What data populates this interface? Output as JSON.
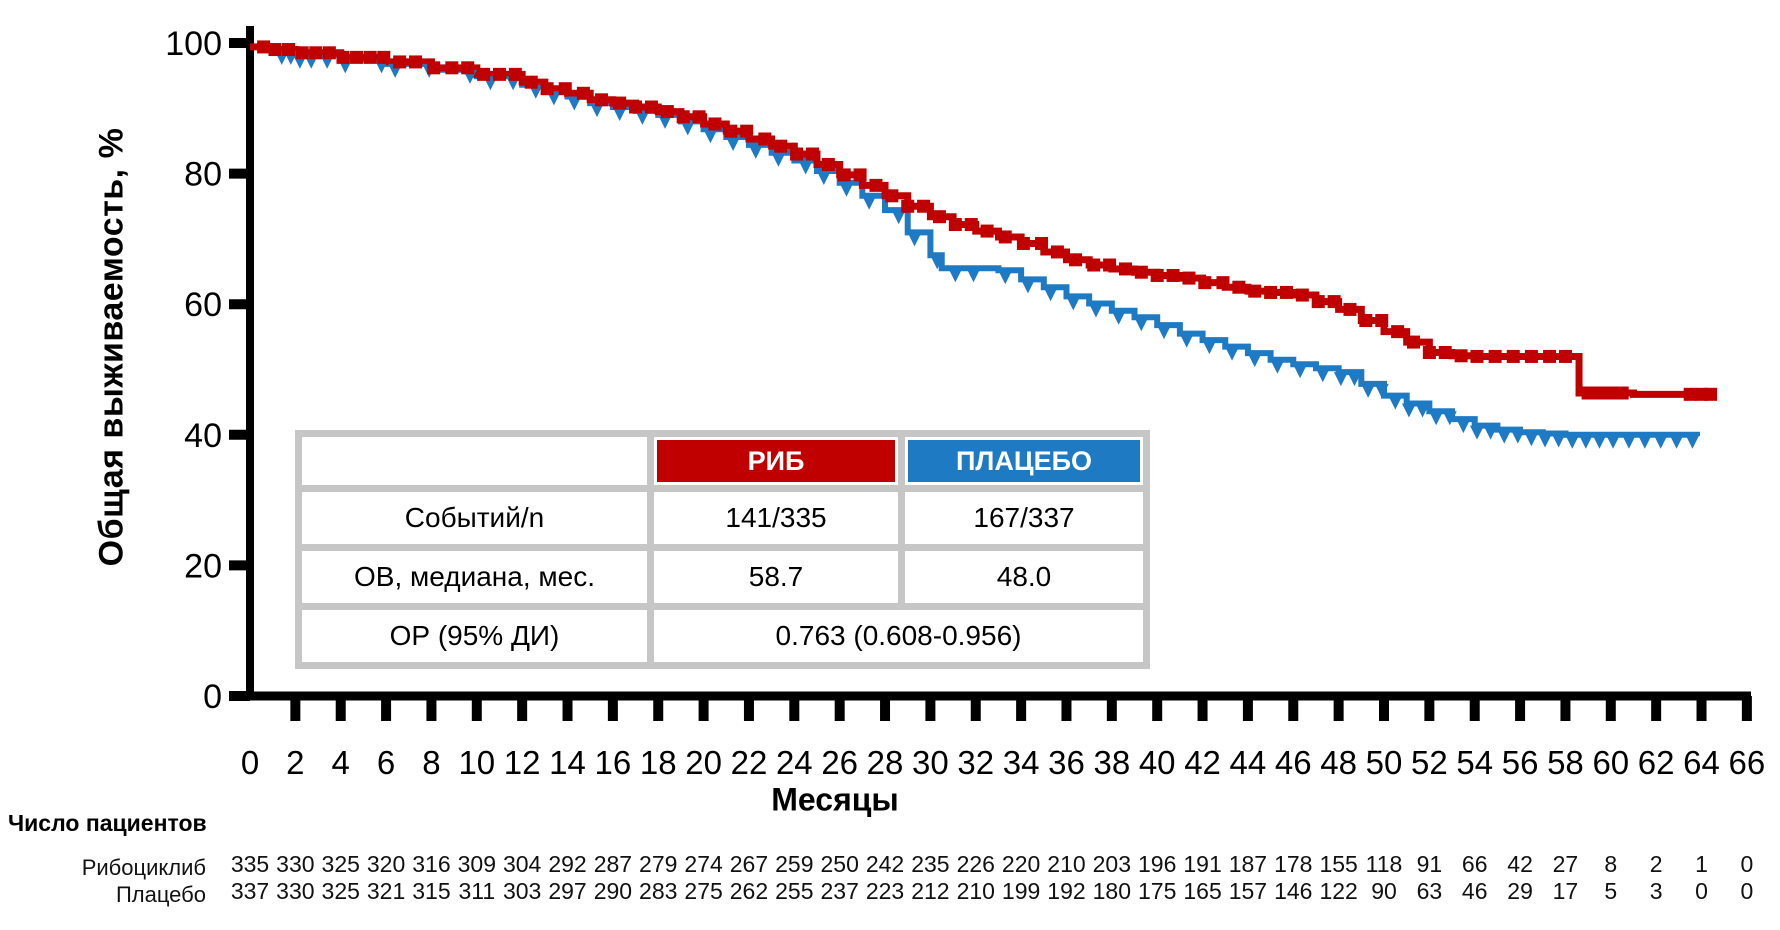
{
  "colors": {
    "rib_red": "#C00000",
    "placebo_blue": "#1F7AC4",
    "table_border_gray": "#C6C6C6",
    "axis_black": "#000000"
  },
  "y_axis": {
    "title": "Общая выживаемость, %",
    "ticks": [
      0,
      20,
      40,
      60,
      80,
      100
    ]
  },
  "x_axis": {
    "title": "Месяцы",
    "tick_start": 0,
    "tick_end": 66,
    "tick_step": 2
  },
  "inset_table": {
    "col_headers": [
      "",
      "РИБ",
      "ПЛАЦЕБО"
    ],
    "rows": [
      {
        "label": "Событий/n",
        "rib": "141/335",
        "placebo": "167/337"
      },
      {
        "label": "ОВ, медиана, мес.",
        "rib": "58.7",
        "placebo": "48.0"
      },
      {
        "label": "ОР (95% ДИ)",
        "combined": "0.763 (0.608-0.956)"
      }
    ]
  },
  "at_risk": {
    "title": "Число пациентов",
    "months": [
      0,
      2,
      4,
      6,
      8,
      10,
      12,
      14,
      16,
      18,
      20,
      22,
      24,
      26,
      28,
      30,
      32,
      34,
      36,
      38,
      40,
      42,
      44,
      46,
      48,
      50,
      52,
      54,
      56,
      58,
      60,
      62,
      64,
      66
    ],
    "rows": [
      {
        "label": "Рибоциклиб",
        "counts": [
          335,
          330,
          325,
          320,
          316,
          309,
          304,
          292,
          287,
          279,
          274,
          267,
          259,
          250,
          242,
          235,
          226,
          220,
          210,
          203,
          196,
          191,
          187,
          178,
          155,
          118,
          91,
          66,
          42,
          27,
          8,
          2,
          1,
          0
        ]
      },
      {
        "label": "Плацебо",
        "counts": [
          337,
          330,
          325,
          321,
          315,
          311,
          303,
          297,
          290,
          283,
          275,
          262,
          255,
          237,
          223,
          212,
          210,
          199,
          192,
          180,
          175,
          165,
          157,
          146,
          122,
          90,
          63,
          46,
          29,
          17,
          5,
          3,
          0,
          0
        ]
      }
    ]
  },
  "chart_data": {
    "type": "line",
    "subtype": "kaplan-meier-step",
    "title": "",
    "xlabel": "Месяцы",
    "ylabel": "Общая выживаемость, %",
    "xlim": [
      0,
      66
    ],
    "ylim": [
      0,
      100
    ],
    "grid": false,
    "legend_position": "inset-table",
    "series": [
      {
        "name": "РИБ",
        "full_name": "Рибоциклиб",
        "color": "#C00000",
        "marker": "square",
        "events_n": "141/335",
        "median_os_months": 58.7,
        "points": [
          [
            0,
            99.4
          ],
          [
            1,
            99.0
          ],
          [
            2,
            98.5
          ],
          [
            4,
            97.8
          ],
          [
            6,
            97.1
          ],
          [
            8,
            96.2
          ],
          [
            10,
            95.2
          ],
          [
            12,
            94.0
          ],
          [
            13,
            93.0
          ],
          [
            14,
            92.3
          ],
          [
            15,
            91.3
          ],
          [
            16,
            90.8
          ],
          [
            17,
            90.2
          ],
          [
            18,
            89.5
          ],
          [
            19,
            88.7
          ],
          [
            20,
            87.6
          ],
          [
            21,
            86.5
          ],
          [
            22,
            85.3
          ],
          [
            23,
            84.2
          ],
          [
            24,
            83.0
          ],
          [
            25,
            81.4
          ],
          [
            26,
            79.8
          ],
          [
            27,
            78.2
          ],
          [
            28,
            76.6
          ],
          [
            29,
            75.0
          ],
          [
            30,
            73.4
          ],
          [
            31,
            72.2
          ],
          [
            32,
            71.2
          ],
          [
            33,
            70.3
          ],
          [
            34,
            69.3
          ],
          [
            35,
            68.0
          ],
          [
            36,
            66.8
          ],
          [
            37,
            66.0
          ],
          [
            38,
            65.4
          ],
          [
            39,
            64.9
          ],
          [
            40,
            64.4
          ],
          [
            41,
            64.0
          ],
          [
            42,
            63.3
          ],
          [
            43,
            62.6
          ],
          [
            44,
            62.0
          ],
          [
            45,
            61.8
          ],
          [
            46,
            61.4
          ],
          [
            47,
            60.4
          ],
          [
            48,
            59.2
          ],
          [
            49,
            57.5
          ],
          [
            50,
            55.8
          ],
          [
            51,
            54.2
          ],
          [
            52,
            52.6
          ],
          [
            53,
            52.1
          ],
          [
            54,
            52.0
          ],
          [
            58.6,
            52.0
          ],
          [
            58.6,
            46.4
          ],
          [
            61,
            46.2
          ],
          [
            64.5,
            46.2
          ]
        ],
        "censor_months": [
          0.6,
          1.1,
          1.7,
          2.3,
          2.9,
          3.5,
          4.1,
          4.7,
          5.3,
          5.9,
          6.6,
          7.3,
          8.1,
          8.9,
          9.6,
          10.3,
          11,
          11.7,
          12.4,
          13.1,
          13.9,
          14.7,
          15.5,
          16.3,
          17,
          17.7,
          18.4,
          19.1,
          19.8,
          20.5,
          21.2,
          21.9,
          22.7,
          23.4,
          24.1,
          24.8,
          25.5,
          26.2,
          26.9,
          27.6,
          28.3,
          29,
          29.7,
          30.4,
          31.1,
          31.8,
          32.5,
          33.3,
          34.1,
          34.9,
          35.6,
          36.4,
          37.2,
          37.9,
          38.6,
          39.3,
          40,
          40.7,
          41.4,
          42.1,
          42.9,
          43.6,
          44.3,
          45,
          45.7,
          46.4,
          47.1,
          47.8,
          48.5,
          49.2,
          49.9,
          50.6,
          51.3,
          52,
          52.7,
          53.4,
          54.1,
          54.9,
          55.7,
          56.5,
          57.3,
          58,
          59,
          59.5,
          60,
          60.5,
          63.5,
          64,
          64.4
        ]
      },
      {
        "name": "ПЛАЦЕБО",
        "full_name": "Плацебо",
        "color": "#1F7AC4",
        "marker": "triangle-down",
        "events_n": "167/337",
        "median_os_months": 48.0,
        "points": [
          [
            0,
            99.4
          ],
          [
            1,
            98.8
          ],
          [
            2,
            98.2
          ],
          [
            4,
            97.5
          ],
          [
            6,
            96.8
          ],
          [
            8,
            95.9
          ],
          [
            10,
            94.9
          ],
          [
            12,
            93.6
          ],
          [
            13,
            92.6
          ],
          [
            14,
            91.8
          ],
          [
            15,
            90.8
          ],
          [
            16,
            90.2
          ],
          [
            17,
            89.6
          ],
          [
            18,
            89.0
          ],
          [
            19,
            88.0
          ],
          [
            20,
            86.8
          ],
          [
            21,
            85.6
          ],
          [
            22,
            84.4
          ],
          [
            23,
            83.2
          ],
          [
            24,
            82.0
          ],
          [
            25,
            80.4
          ],
          [
            26,
            78.6
          ],
          [
            27,
            76.6
          ],
          [
            28,
            74.4
          ],
          [
            29,
            71.0
          ],
          [
            30,
            67.5
          ],
          [
            30.5,
            65.5
          ],
          [
            33,
            65.2
          ],
          [
            34,
            63.8
          ],
          [
            35,
            62.6
          ],
          [
            36,
            61.2
          ],
          [
            37,
            60.1
          ],
          [
            38,
            59.0
          ],
          [
            39,
            58.0
          ],
          [
            40,
            56.8
          ],
          [
            41,
            55.5
          ],
          [
            42,
            54.5
          ],
          [
            43,
            53.5
          ],
          [
            44,
            52.5
          ],
          [
            45,
            51.5
          ],
          [
            46,
            50.8
          ],
          [
            47,
            50.2
          ],
          [
            48,
            49.6
          ],
          [
            49,
            47.8
          ],
          [
            50,
            46.0
          ],
          [
            51,
            44.8
          ],
          [
            52,
            43.6
          ],
          [
            53,
            42.4
          ],
          [
            54,
            41.4
          ],
          [
            55,
            40.8
          ],
          [
            56,
            40.4
          ],
          [
            57,
            40.2
          ],
          [
            58,
            40.0
          ],
          [
            63.8,
            39.8
          ]
        ],
        "censor_months": [
          1.4,
          1.8,
          2.2,
          2.7,
          3.4,
          4.2,
          5.8,
          6.4,
          7.9,
          9.7,
          10.6,
          11.6,
          12.6,
          13.4,
          14.3,
          15.3,
          16.3,
          17.3,
          18.3,
          19.3,
          20.3,
          21.3,
          22.3,
          23.3,
          24.5,
          25.3,
          26.3,
          27.3,
          28.6,
          29.3,
          30.3,
          31.1,
          31.9,
          33.3,
          34.3,
          35.3,
          36.3,
          37.3,
          38.3,
          39.3,
          40.3,
          41.3,
          42.3,
          43.3,
          44.3,
          45.3,
          46.3,
          47.3,
          48.1,
          48.7,
          49.3,
          49.9,
          50.5,
          51.1,
          51.7,
          52.3,
          52.9,
          53.5,
          54.1,
          54.7,
          55.3,
          55.9,
          56.5,
          57.1,
          57.7,
          58.3,
          58.9,
          59.5,
          60.1,
          60.8,
          61.5,
          62.2,
          62.9,
          63.6
        ]
      }
    ],
    "hazard_ratio": "0.763 (0.608-0.956)"
  }
}
